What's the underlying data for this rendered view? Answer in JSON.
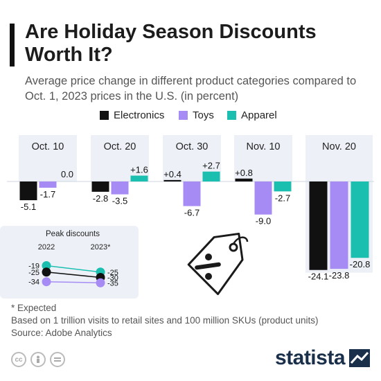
{
  "header": {
    "title": "Are Holiday Season Discounts Worth It?",
    "subtitle": "Average price change in different product categories compared to Oct. 1, 2023 prices in the U.S. (in percent)"
  },
  "colors": {
    "Electronics": "#111111",
    "Toys": "#a78bf5",
    "Apparel": "#1bbfb0",
    "panel": "#edf1f7"
  },
  "chart_data": [
    {
      "type": "bar",
      "categories": [
        "Oct. 10",
        "Oct. 20",
        "Oct. 30",
        "Nov. 10",
        "Nov. 20"
      ],
      "series": [
        {
          "name": "Electronics",
          "values": [
            -5.1,
            -2.8,
            0.4,
            0.8,
            -24.1
          ],
          "labels": [
            "-5.1",
            "-2.8",
            "+0.4",
            "+0.8",
            "-24.1"
          ]
        },
        {
          "name": "Toys",
          "values": [
            -1.7,
            -3.5,
            -6.7,
            -9.0,
            -23.8
          ],
          "labels": [
            "-1.7",
            "-3.5",
            "-6.7",
            "-9.0",
            "-23.8"
          ]
        },
        {
          "name": "Apparel",
          "values": [
            0.0,
            1.6,
            2.7,
            -2.7,
            -20.8
          ],
          "labels": [
            "0.0",
            "+1.6",
            "+2.7",
            "-2.7",
            "-20.8"
          ]
        }
      ],
      "legend": "top-center"
    },
    {
      "type": "line",
      "title": "Peak discounts",
      "categories": [
        "2022",
        "2023*"
      ],
      "series": [
        {
          "name": "Apparel",
          "values": [
            -19,
            -25
          ]
        },
        {
          "name": "Electronics",
          "values": [
            -25,
            -30
          ]
        },
        {
          "name": "Toys",
          "values": [
            -34,
            -35
          ]
        }
      ]
    }
  ],
  "footer": {
    "note": "* Expected",
    "basis": "Based on 1 trillion visits to retail sites and 100 million SKUs (product units)",
    "source": "Source: Adobe Analytics"
  },
  "branding": {
    "name": "statista",
    "license_icons": [
      "cc-icon",
      "person-icon",
      "equal-icon"
    ]
  },
  "icons": {
    "illustration": "discount-tag-icon"
  }
}
